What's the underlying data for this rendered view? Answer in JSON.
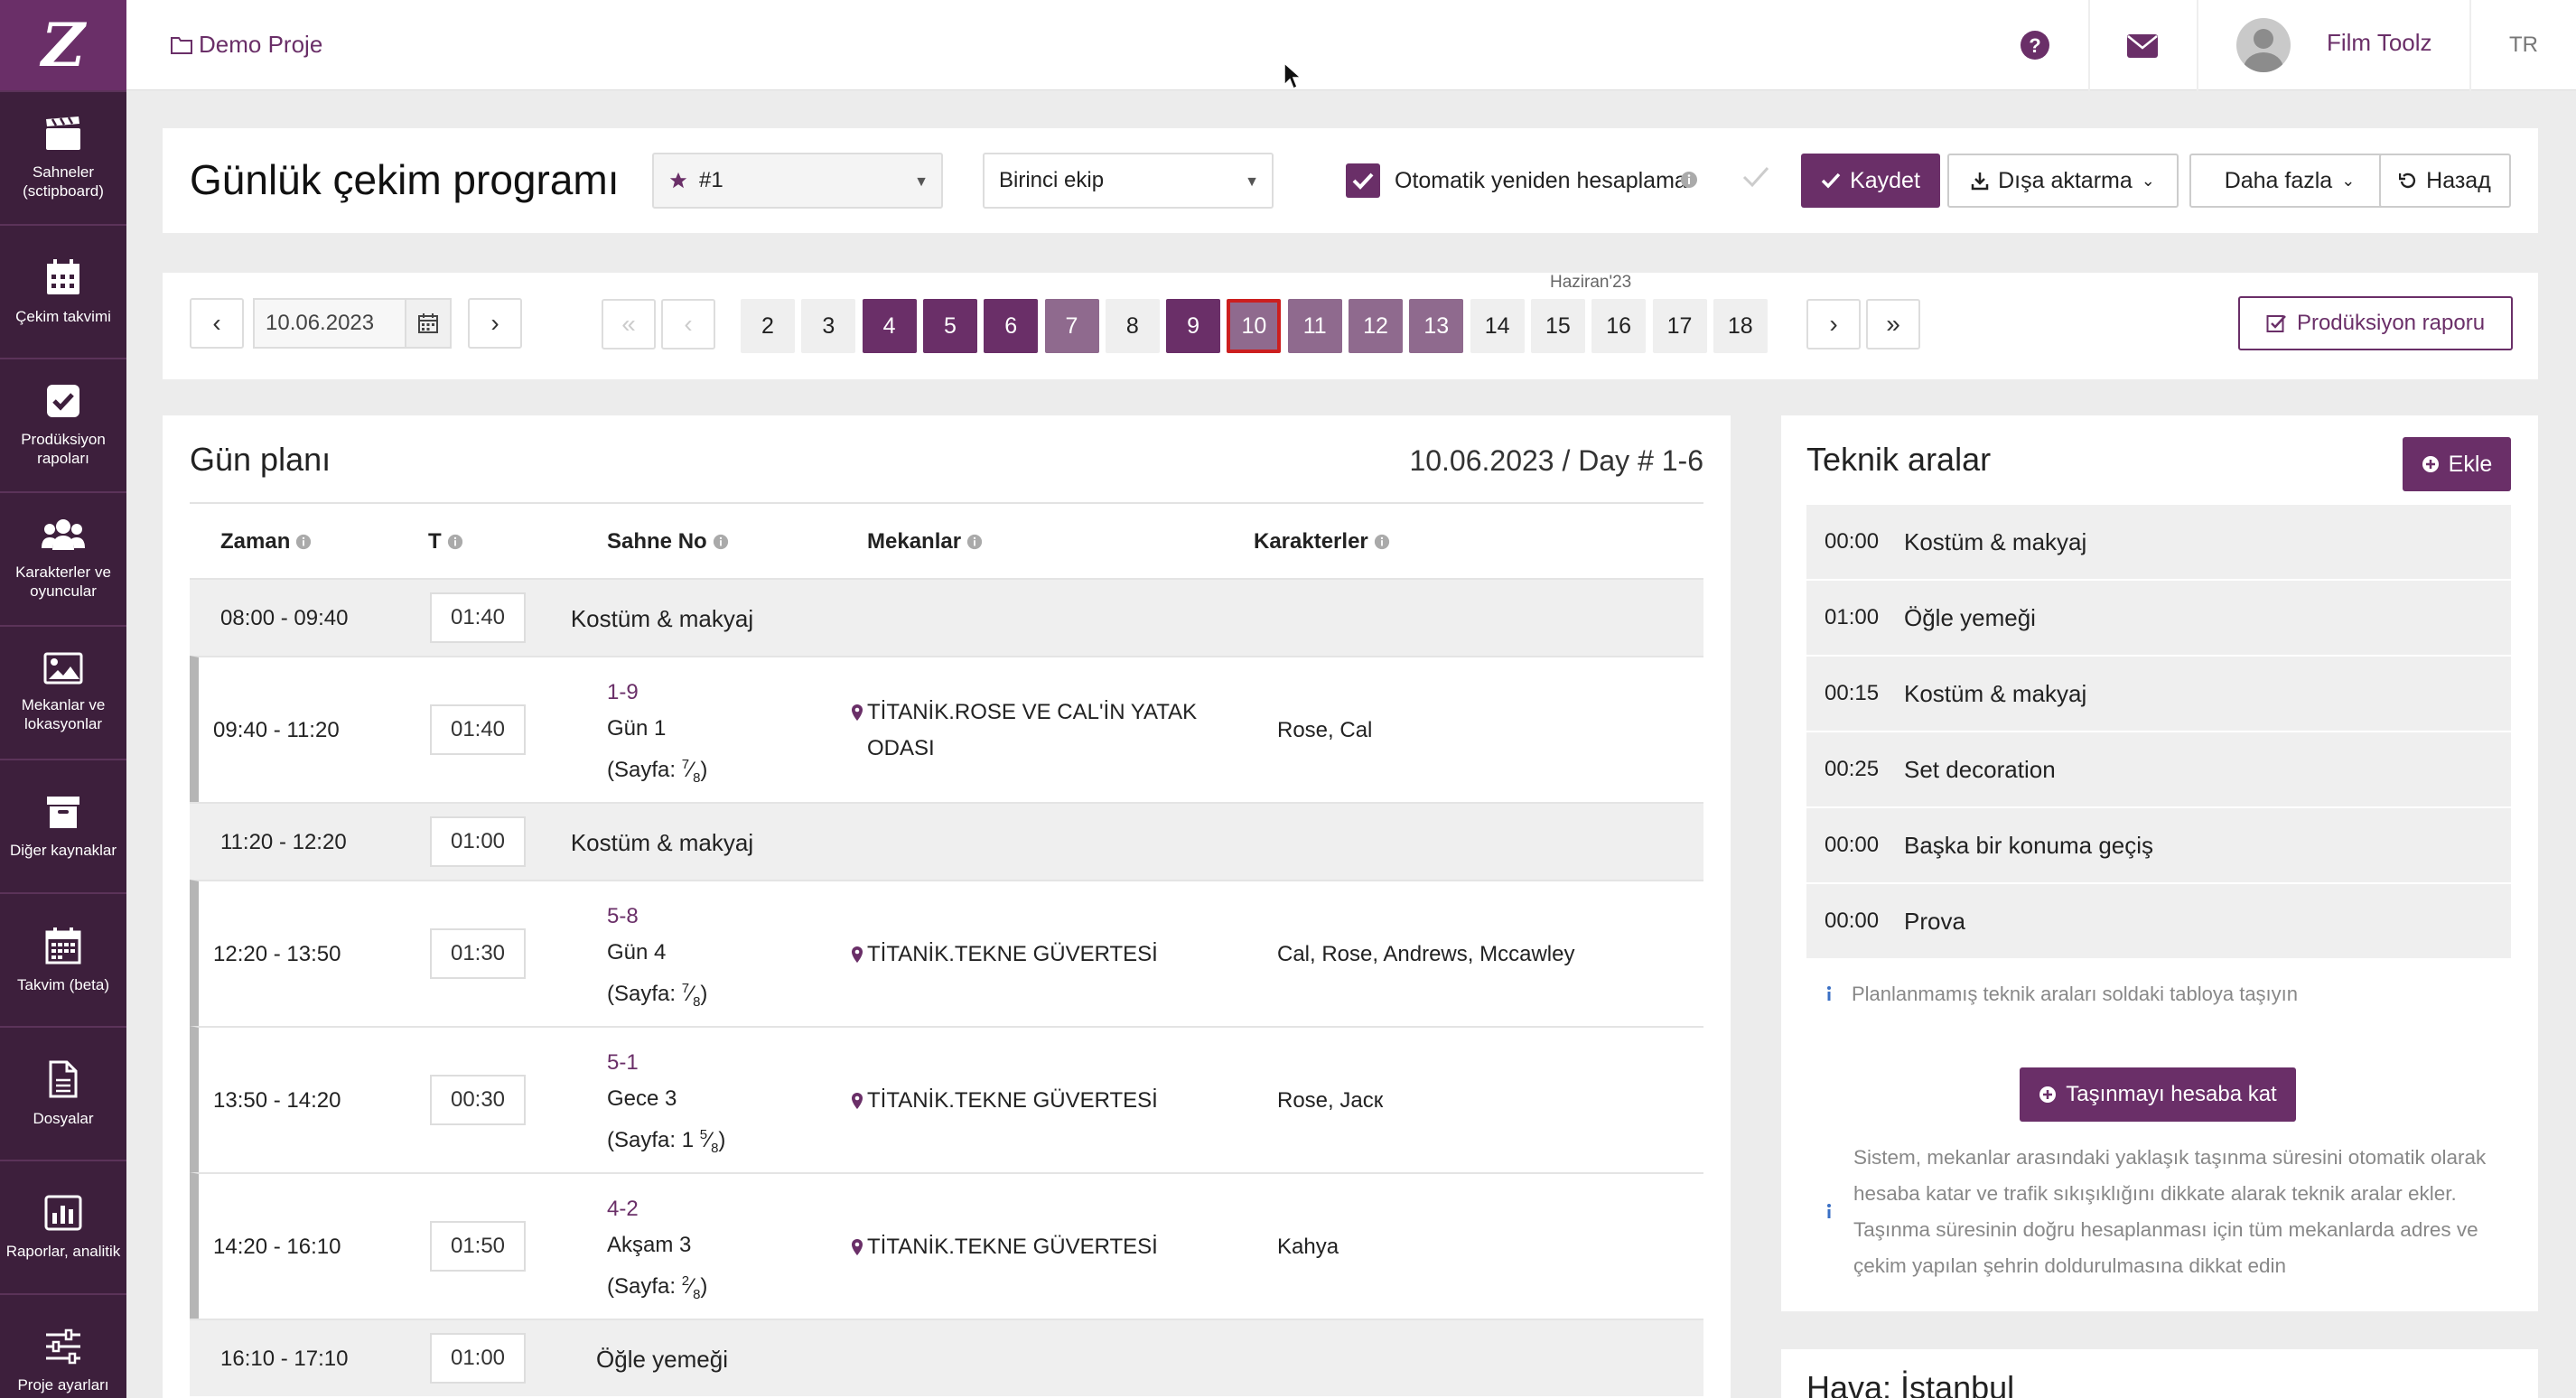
{
  "app": {
    "logo_text": "Z",
    "language": "TR"
  },
  "colors": {
    "accent": "#6a2f68",
    "sidebar": "#3d1f3c",
    "active_day_border": "#cc1f1f"
  },
  "sidebar": {
    "items": [
      {
        "label": "Sahneler (sctipboard)",
        "icon": "clapperboard-icon"
      },
      {
        "label": "Çekim takvimi",
        "icon": "calendar-icon"
      },
      {
        "label": "Prodüksiyon rapoları",
        "icon": "checkbox-icon"
      },
      {
        "label": "Karakterler ve oyuncular",
        "icon": "users-icon"
      },
      {
        "label": "Mekanlar ve lokasyonlar",
        "icon": "image-icon"
      },
      {
        "label": "Diğer kaynaklar",
        "icon": "archive-icon"
      },
      {
        "label": "Takvim (beta)",
        "icon": "calendar-grid-icon"
      },
      {
        "label": "Dosyalar",
        "icon": "file-icon"
      },
      {
        "label": "Raporlar, analitik",
        "icon": "bar-chart-icon"
      },
      {
        "label": "Proje ayarları",
        "icon": "sliders-icon"
      }
    ]
  },
  "topbar": {
    "project": "Demo Proje",
    "user": "Film Toolz"
  },
  "header": {
    "title": "Günlük çekim programı",
    "schedule_select": "#1",
    "crew_select": "Birinci ekip",
    "auto_recalc_label": "Otomatik yeniden hesaplama",
    "auto_recalc_checked": true,
    "save_label": "Kaydet",
    "export_label": "Dışa aktarma",
    "more_label": "Daha fazla",
    "reset_label": "Назад"
  },
  "date_nav": {
    "date": "10.06.2023",
    "month_label": "Haziran'23",
    "report_label": "Prodüksiyon raporu",
    "days": [
      {
        "n": "2",
        "state": "empty"
      },
      {
        "n": "3",
        "state": "empty"
      },
      {
        "n": "4",
        "state": "dark"
      },
      {
        "n": "5",
        "state": "dark"
      },
      {
        "n": "6",
        "state": "dark"
      },
      {
        "n": "7",
        "state": "light"
      },
      {
        "n": "8",
        "state": "empty"
      },
      {
        "n": "9",
        "state": "dark"
      },
      {
        "n": "10",
        "state": "active"
      },
      {
        "n": "11",
        "state": "light"
      },
      {
        "n": "12",
        "state": "light"
      },
      {
        "n": "13",
        "state": "light"
      },
      {
        "n": "14",
        "state": "empty"
      },
      {
        "n": "15",
        "state": "empty"
      },
      {
        "n": "16",
        "state": "empty"
      },
      {
        "n": "17",
        "state": "empty"
      },
      {
        "n": "18",
        "state": "empty"
      }
    ]
  },
  "plan": {
    "title": "Gün planı",
    "date_label": "10.06.2023 / Day # 1-6",
    "columns": {
      "time": "Zaman",
      "t": "T",
      "scene": "Sahne No",
      "locations": "Mekanlar",
      "characters": "Karakterler"
    },
    "rows": [
      {
        "type": "break",
        "time": "08:00 - 09:40",
        "duration": "01:40",
        "label": "Kostüm & makyaj"
      },
      {
        "type": "scene",
        "time": "09:40 - 11:20",
        "duration": "01:40",
        "scene_no": "1-9",
        "day": "Gün 1",
        "page_prefix": "(Sayfa: ",
        "page_whole": "",
        "page_num": "7",
        "page_den": "8",
        "location": "TİTANİK.ROSE VE CAL'İN YATAK ODASI",
        "characters": "Rose, Cal"
      },
      {
        "type": "break",
        "time": "11:20 - 12:20",
        "duration": "01:00",
        "label": "Kostüm & makyaj"
      },
      {
        "type": "scene",
        "time": "12:20 - 13:50",
        "duration": "01:30",
        "scene_no": "5-8",
        "day": "Gün 4",
        "page_prefix": "(Sayfa: ",
        "page_whole": "",
        "page_num": "7",
        "page_den": "8",
        "location": "TİTANİK.TEKNE GÜVERTESİ",
        "characters": "Cal, Rose, Andrews, Mccawley"
      },
      {
        "type": "scene",
        "time": "13:50 - 14:20",
        "duration": "00:30",
        "scene_no": "5-1",
        "day": "Gece 3",
        "page_prefix": "(Sayfa: ",
        "page_whole": "1 ",
        "page_num": "5",
        "page_den": "8",
        "location": "TİTANİK.TEKNE GÜVERTESİ",
        "characters": "Rose, Jacк"
      },
      {
        "type": "scene",
        "time": "14:20 - 16:10",
        "duration": "01:50",
        "scene_no": "4-2",
        "day": "Akşam 3",
        "page_prefix": "(Sayfa: ",
        "page_whole": "",
        "page_num": "2",
        "page_den": "8",
        "location": "TİTANİK.TEKNE GÜVERTESİ",
        "characters": "Kahya"
      },
      {
        "type": "break",
        "time": "16:10 - 17:10",
        "duration": "01:00",
        "label": "Öğle yemeği"
      }
    ]
  },
  "tech": {
    "title": "Teknik aralar",
    "add_label": "Ekle",
    "items": [
      {
        "time": "00:00",
        "label": "Kostüm & makyaj"
      },
      {
        "time": "01:00",
        "label": "Öğle yemeği"
      },
      {
        "time": "00:15",
        "label": "Kostüm & makyaj"
      },
      {
        "time": "00:25",
        "label": "Set decoration"
      },
      {
        "time": "00:00",
        "label": "Başka bir konuma geçiş"
      },
      {
        "time": "00:00",
        "label": "Prova"
      }
    ],
    "hint": "Planlanmamış teknik araları soldaki tabloya taşıyın",
    "move_btn": "Taşınmayı hesaba kat",
    "move_info": "Sistem, mekanlar arasındaki yaklaşık taşınma süresini otomatik olarak hesaba katar ve trafik sıkışıklığını dikkate alarak teknik aralar ekler. Taşınma süresinin doğru hesaplanması için tüm mekanlarda adres ve çekim yapılan şehrin doldurulmasına dikkat edin"
  },
  "weather": {
    "title": "Hava: İstanbul"
  }
}
